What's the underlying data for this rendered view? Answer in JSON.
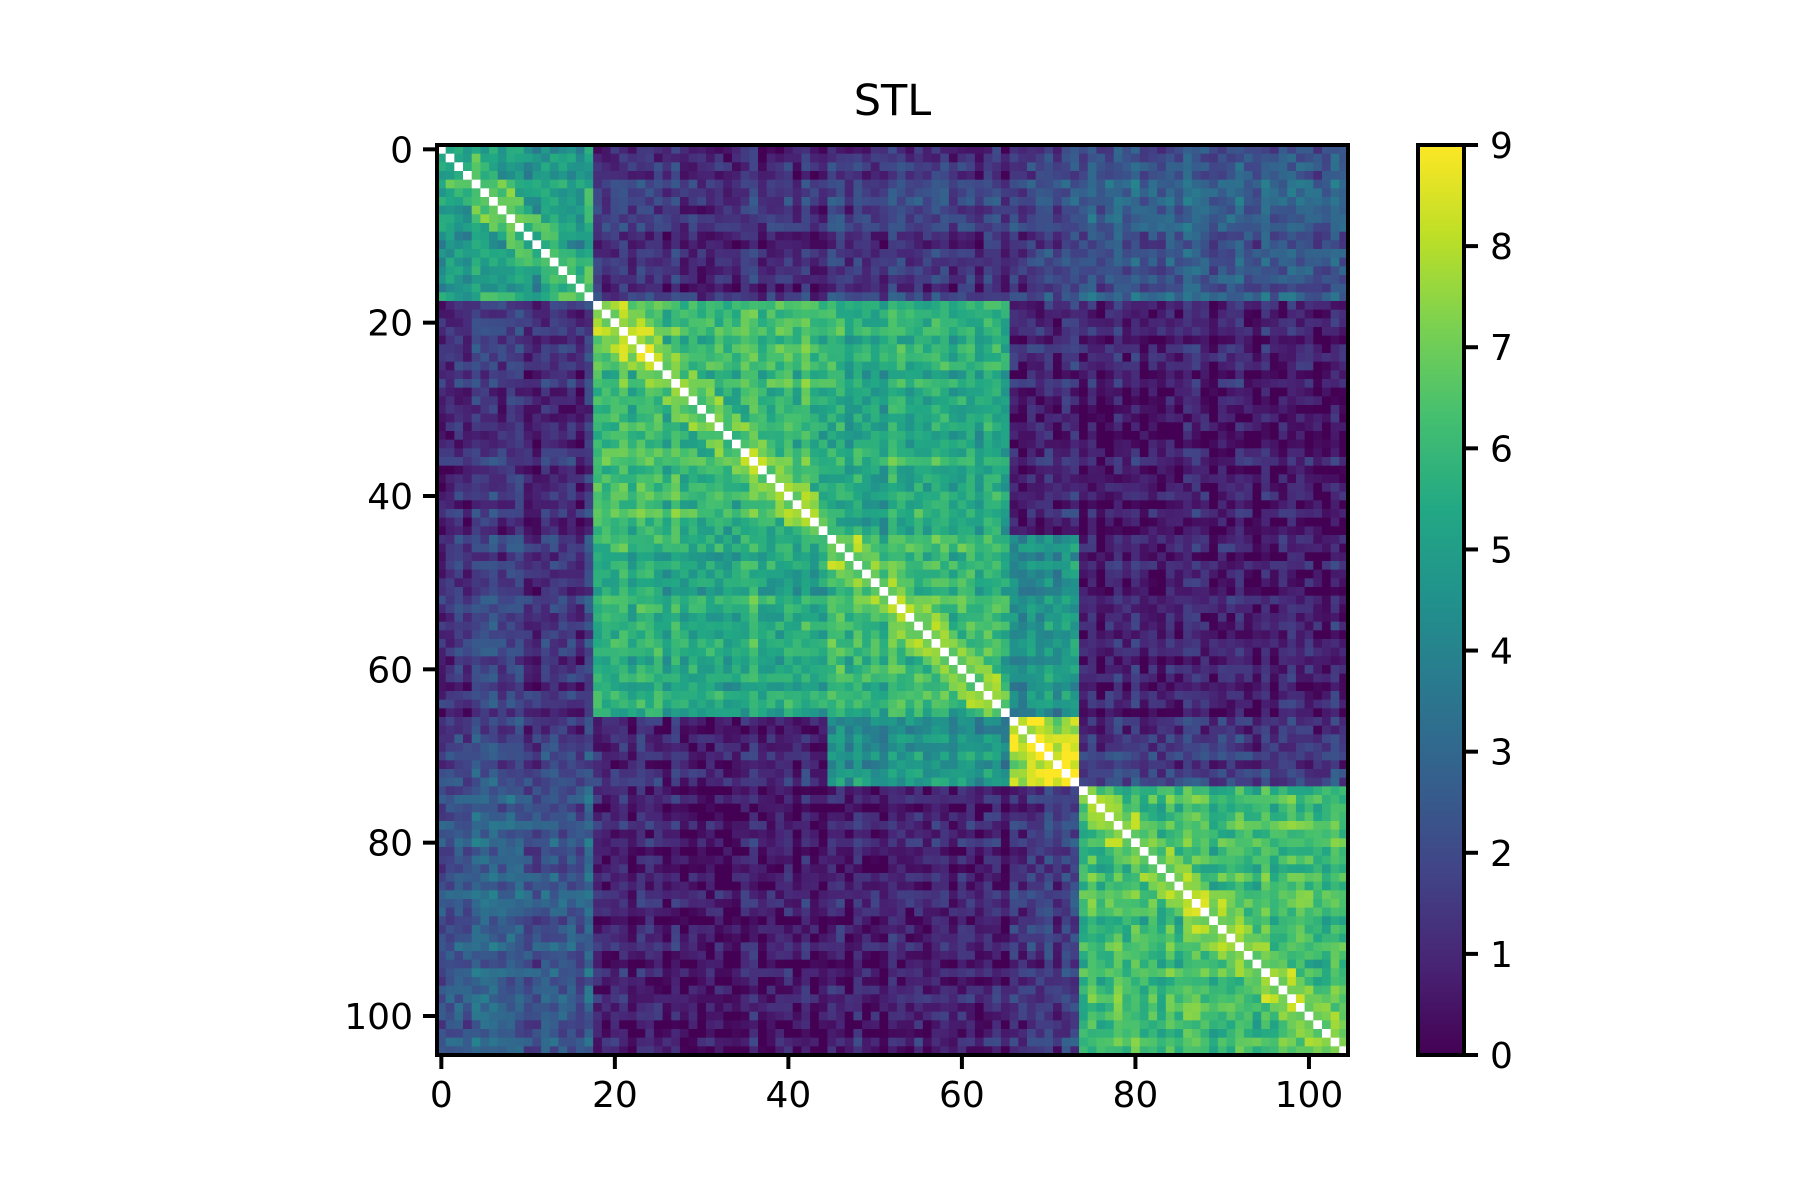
{
  "chart_data": {
    "type": "heatmap",
    "title": "STL",
    "xlabel": "",
    "ylabel": "",
    "size": 105,
    "xlim": [
      0,
      104
    ],
    "ylim": [
      104,
      0
    ],
    "x_ticks": [
      "0",
      "20",
      "40",
      "60",
      "80",
      "100"
    ],
    "y_ticks": [
      "0",
      "20",
      "40",
      "60",
      "80",
      "100"
    ],
    "tick_values": [
      0,
      20,
      40,
      60,
      80,
      100
    ],
    "colorscale": "viridis",
    "colorbar": {
      "range": [
        0,
        9
      ],
      "ticks": [
        "0",
        "1",
        "2",
        "3",
        "4",
        "5",
        "6",
        "7",
        "8",
        "9"
      ],
      "tick_values": [
        0,
        1,
        2,
        3,
        4,
        5,
        6,
        7,
        8,
        9
      ]
    },
    "diagonal_color": "#ffffff",
    "groups": [
      {
        "start": 0,
        "end": 17
      },
      {
        "start": 18,
        "end": 44
      },
      {
        "start": 45,
        "end": 65
      },
      {
        "start": 66,
        "end": 73
      },
      {
        "start": 74,
        "end": 104
      }
    ],
    "block_means": [
      [
        5.0,
        1.2,
        1.5,
        1.8,
        2.5
      ],
      [
        1.2,
        6.0,
        5.5,
        0.9,
        0.6
      ],
      [
        1.5,
        5.5,
        6.0,
        4.5,
        0.8
      ],
      [
        1.8,
        0.9,
        4.5,
        7.5,
        1.5
      ],
      [
        2.5,
        0.6,
        0.8,
        1.5,
        6.2
      ]
    ]
  }
}
